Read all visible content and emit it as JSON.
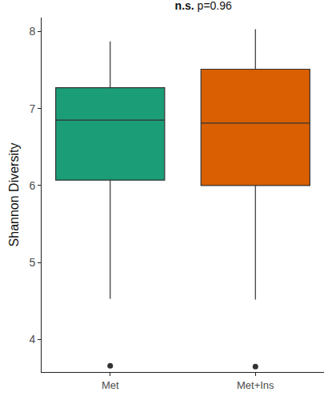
{
  "chart_data": {
    "type": "box",
    "title": "n.s. p=0.96",
    "y_label": "Shannon Diversity",
    "categories": [
      "Met",
      "Met+Ins"
    ],
    "colors": [
      "#1b9e77",
      "#d95f02"
    ],
    "q1": [
      6.07,
      6.0
    ],
    "median": [
      6.85,
      6.81
    ],
    "q3": [
      7.27,
      7.51
    ],
    "lowerfence": [
      4.53,
      4.52
    ],
    "upperfence": [
      7.87,
      8.03
    ],
    "outliers": [
      [
        3.66
      ],
      [
        3.65
      ]
    ],
    "ylim": [
      3.58,
      8.18
    ],
    "yticks": [
      4,
      5,
      6,
      7,
      8
    ],
    "grid": false
  }
}
